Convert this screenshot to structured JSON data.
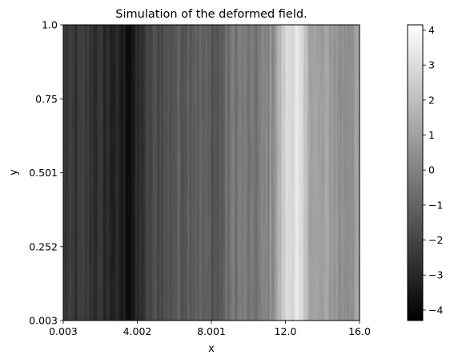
{
  "chart_data": {
    "type": "heatmap",
    "title": "Simulation of the deformed field.",
    "xlabel": "x",
    "ylabel": "y",
    "xlim": [
      0.003,
      16.0
    ],
    "ylim": [
      0.003,
      1.0
    ],
    "x_ticks": [
      0.003,
      4.002,
      8.001,
      12.0,
      16.0
    ],
    "x_tick_labels": [
      "0.003",
      "4.002",
      "8.001",
      "12.0",
      "16.0"
    ],
    "y_ticks": [
      0.003,
      0.252,
      0.501,
      0.75,
      1.0
    ],
    "y_tick_labels": [
      "0.003",
      "0.252",
      "0.501",
      "0.75",
      "1.0"
    ],
    "colormap": "gray",
    "color_min": -4.3,
    "color_max": 4.15,
    "colorbar_ticks": [
      -4,
      -3,
      -2,
      -1,
      0,
      1,
      2,
      3,
      4
    ],
    "colorbar_tick_labels": [
      "−4",
      "−3",
      "−2",
      "−1",
      "0",
      "1",
      "2",
      "3",
      "4"
    ],
    "column_profile": {
      "x": [
        0.003,
        0.6,
        1.2,
        1.8,
        2.4,
        3.0,
        3.6,
        4.2,
        4.8,
        5.4,
        6.0,
        6.6,
        7.2,
        7.8,
        8.4,
        9.0,
        9.6,
        10.2,
        10.8,
        11.4,
        12.0,
        12.6,
        13.2,
        13.8,
        14.4,
        15.0,
        15.6,
        16.0
      ],
      "values": [
        -2.5,
        -2.6,
        -2.4,
        -2.7,
        -2.9,
        -3.3,
        -3.7,
        -2.8,
        -1.9,
        -1.7,
        -1.4,
        -1.2,
        -1.0,
        -1.3,
        -1.5,
        -0.5,
        -0.2,
        -0.6,
        -0.1,
        0.6,
        2.8,
        3.3,
        1.6,
        0.8,
        1.0,
        0.4,
        0.7,
        0.9
      ]
    }
  }
}
